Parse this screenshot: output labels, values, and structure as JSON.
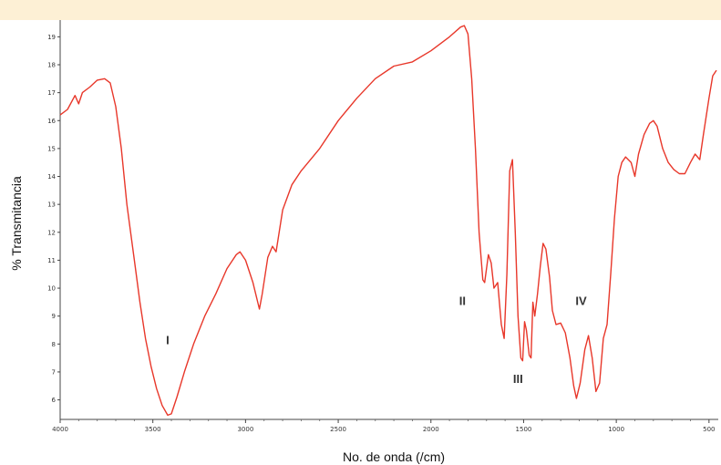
{
  "chart_data": {
    "type": "line",
    "title": "",
    "xlabel": "No. de onda (/cm)",
    "ylabel": "% Transmitancia",
    "xlim": [
      4000,
      450
    ],
    "ylim": [
      5.3,
      19.6
    ],
    "x_ticks": [
      4000,
      3500,
      3000,
      2500,
      2000,
      1500,
      1000,
      500
    ],
    "x_tick_labels": [
      "4000",
      "3500",
      "3000",
      "2500",
      "2000",
      "1500",
      "1000",
      "500"
    ],
    "y_ticks": [
      6,
      7,
      8,
      9,
      10,
      11,
      12,
      13,
      14,
      15,
      16,
      17,
      18,
      19
    ],
    "y_tick_labels": [
      "6",
      "7",
      "8",
      "9",
      "10",
      "11",
      "12",
      "13",
      "14",
      "15",
      "16",
      "17",
      "18",
      "19"
    ],
    "grid": false,
    "line_color": "#e8372a",
    "series": [
      {
        "points": [
          [
            4000,
            16.2
          ],
          [
            3960,
            16.4
          ],
          [
            3920,
            16.9
          ],
          [
            3900,
            16.6
          ],
          [
            3880,
            17.0
          ],
          [
            3840,
            17.2
          ],
          [
            3800,
            17.45
          ],
          [
            3760,
            17.5
          ],
          [
            3730,
            17.35
          ],
          [
            3700,
            16.5
          ],
          [
            3670,
            15.0
          ],
          [
            3640,
            13.0
          ],
          [
            3600,
            11.0
          ],
          [
            3570,
            9.5
          ],
          [
            3540,
            8.2
          ],
          [
            3510,
            7.2
          ],
          [
            3480,
            6.4
          ],
          [
            3450,
            5.8
          ],
          [
            3420,
            5.45
          ],
          [
            3400,
            5.5
          ],
          [
            3370,
            6.1
          ],
          [
            3330,
            7.0
          ],
          [
            3280,
            8.0
          ],
          [
            3220,
            9.0
          ],
          [
            3160,
            9.8
          ],
          [
            3100,
            10.7
          ],
          [
            3050,
            11.2
          ],
          [
            3030,
            11.3
          ],
          [
            3000,
            11.0
          ],
          [
            2960,
            10.2
          ],
          [
            2925,
            9.25
          ],
          [
            2910,
            9.8
          ],
          [
            2880,
            11.1
          ],
          [
            2855,
            11.5
          ],
          [
            2835,
            11.3
          ],
          [
            2800,
            12.8
          ],
          [
            2750,
            13.7
          ],
          [
            2700,
            14.2
          ],
          [
            2600,
            15.0
          ],
          [
            2500,
            16.0
          ],
          [
            2400,
            16.8
          ],
          [
            2300,
            17.5
          ],
          [
            2200,
            17.95
          ],
          [
            2100,
            18.1
          ],
          [
            2000,
            18.5
          ],
          [
            1900,
            19.0
          ],
          [
            1840,
            19.35
          ],
          [
            1820,
            19.4
          ],
          [
            1800,
            19.1
          ],
          [
            1780,
            17.5
          ],
          [
            1760,
            15.0
          ],
          [
            1740,
            12.0
          ],
          [
            1720,
            10.3
          ],
          [
            1710,
            10.2
          ],
          [
            1690,
            11.2
          ],
          [
            1675,
            10.9
          ],
          [
            1660,
            10.0
          ],
          [
            1640,
            10.2
          ],
          [
            1620,
            8.7
          ],
          [
            1605,
            8.2
          ],
          [
            1590,
            10.5
          ],
          [
            1575,
            14.2
          ],
          [
            1560,
            14.6
          ],
          [
            1545,
            12.0
          ],
          [
            1530,
            9.0
          ],
          [
            1515,
            7.5
          ],
          [
            1505,
            7.4
          ],
          [
            1495,
            8.8
          ],
          [
            1485,
            8.5
          ],
          [
            1470,
            7.6
          ],
          [
            1460,
            7.5
          ],
          [
            1450,
            9.5
          ],
          [
            1440,
            9.0
          ],
          [
            1425,
            9.8
          ],
          [
            1410,
            10.8
          ],
          [
            1395,
            11.6
          ],
          [
            1380,
            11.4
          ],
          [
            1360,
            10.4
          ],
          [
            1345,
            9.2
          ],
          [
            1325,
            8.7
          ],
          [
            1300,
            8.75
          ],
          [
            1275,
            8.4
          ],
          [
            1250,
            7.5
          ],
          [
            1230,
            6.5
          ],
          [
            1215,
            6.05
          ],
          [
            1195,
            6.6
          ],
          [
            1170,
            7.8
          ],
          [
            1150,
            8.3
          ],
          [
            1130,
            7.5
          ],
          [
            1110,
            6.3
          ],
          [
            1090,
            6.6
          ],
          [
            1070,
            8.2
          ],
          [
            1050,
            8.7
          ],
          [
            1030,
            10.5
          ],
          [
            1010,
            12.5
          ],
          [
            990,
            14.0
          ],
          [
            970,
            14.5
          ],
          [
            950,
            14.7
          ],
          [
            920,
            14.5
          ],
          [
            900,
            14.0
          ],
          [
            880,
            14.8
          ],
          [
            850,
            15.5
          ],
          [
            820,
            15.9
          ],
          [
            800,
            16.0
          ],
          [
            780,
            15.8
          ],
          [
            750,
            15.0
          ],
          [
            720,
            14.5
          ],
          [
            690,
            14.25
          ],
          [
            660,
            14.1
          ],
          [
            630,
            14.1
          ],
          [
            600,
            14.5
          ],
          [
            575,
            14.8
          ],
          [
            550,
            14.6
          ],
          [
            530,
            15.5
          ],
          [
            500,
            16.8
          ],
          [
            480,
            17.6
          ],
          [
            460,
            17.8
          ]
        ]
      }
    ],
    "annotations": [
      {
        "text": "I",
        "x": 3420,
        "y": 8.0
      },
      {
        "text": "II",
        "x": 1830,
        "y": 9.4
      },
      {
        "text": "III",
        "x": 1530,
        "y": 6.6
      },
      {
        "text": "IV",
        "x": 1190,
        "y": 9.4
      }
    ]
  }
}
